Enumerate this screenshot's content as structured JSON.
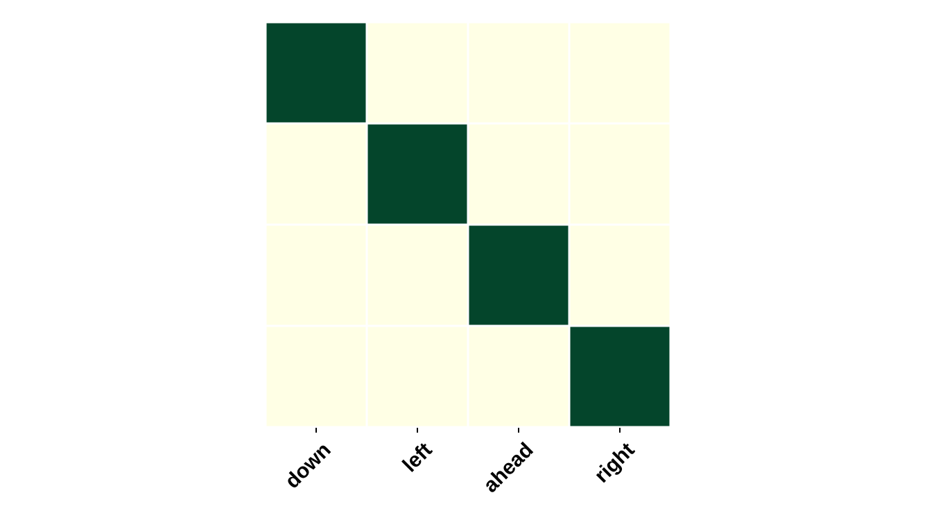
{
  "chart_data": {
    "type": "heatmap",
    "x_categories": [
      "down",
      "left",
      "ahead",
      "right"
    ],
    "y_categories": [],
    "matrix": [
      [
        1,
        0,
        0,
        0
      ],
      [
        0,
        1,
        0,
        0
      ],
      [
        0,
        0,
        1,
        0
      ],
      [
        0,
        0,
        0,
        1
      ]
    ],
    "colormap": {
      "low": "#ffffe5",
      "high": "#04452b"
    },
    "value_range": [
      0,
      1
    ],
    "grid": false,
    "legend": "none",
    "title": "",
    "xlabel": "",
    "ylabel": ""
  }
}
